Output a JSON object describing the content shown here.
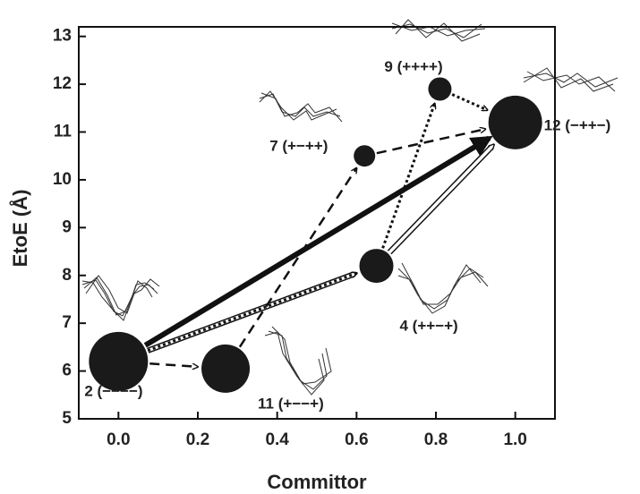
{
  "chart_data": {
    "type": "scatter",
    "xlabel": "Committor",
    "ylabel": "EtoE (Å)",
    "x": [
      0.0,
      0.27,
      0.65,
      0.62,
      0.81,
      1.0
    ],
    "values": [
      6.2,
      6.05,
      8.2,
      10.5,
      11.9,
      11.2
    ],
    "sizes": [
      33,
      27,
      19,
      12,
      13,
      30
    ],
    "labels": [
      "2 (−−−−)",
      "11 (+−−+)",
      "4 (++−+)",
      "7 (+−++)",
      "9 (++++)",
      "12 (−++−)"
    ],
    "color": "#1a1a1a",
    "edges": [
      {
        "from": 0,
        "to": 5,
        "style": "solid"
      },
      {
        "from": 0,
        "to": 2,
        "style": "double"
      },
      {
        "from": 2,
        "to": 5,
        "style": "double"
      },
      {
        "from": 0,
        "to": 2,
        "style": "dotted"
      },
      {
        "from": 2,
        "to": 4,
        "style": "dotted"
      },
      {
        "from": 4,
        "to": 5,
        "style": "dotted"
      },
      {
        "from": 0,
        "to": 1,
        "style": "dashed"
      },
      {
        "from": 1,
        "to": 3,
        "style": "dashed"
      },
      {
        "from": 3,
        "to": 5,
        "style": "dashed"
      }
    ],
    "xlim": [
      -0.1,
      1.1
    ],
    "xticks": [
      {
        "value": 0,
        "label": "0.0"
      },
      {
        "value": 0.2,
        "label": "0.2"
      },
      {
        "value": 0.4,
        "label": "0.4"
      },
      {
        "value": 0.6,
        "label": "0.6"
      },
      {
        "value": 0.8,
        "label": "0.8"
      },
      {
        "value": 1,
        "label": "1.0"
      }
    ],
    "ylim": [
      5,
      13.2
    ],
    "yticks": [
      5,
      6,
      7,
      8,
      9,
      10,
      11,
      12,
      13
    ]
  }
}
